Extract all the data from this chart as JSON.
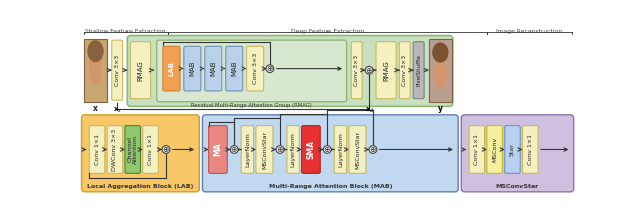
{
  "colors": {
    "conv_box": "#f5f0c0",
    "conv_border": "#c8b860",
    "green_outer_bg": "#c8dfc0",
    "green_outer_border": "#90b878",
    "green_inner_bg": "#d8e8d0",
    "green_inner_border": "#90b878",
    "orange_box": "#f0a050",
    "orange_border": "#d08030",
    "blue_box": "#b8d0e8",
    "blue_border": "#7090b8",
    "orange_section_bg": "#f8c868",
    "orange_section_border": "#c8a030",
    "blue_section_bg": "#c0d8f0",
    "blue_section_border": "#7090c0",
    "purple_section_bg": "#d0c0e0",
    "purple_section_border": "#9070b0",
    "yellow_box": "#f5f0a0",
    "yellow_border": "#c8b820",
    "blue_box2": "#b8d0f0",
    "blue_border2": "#7090d0",
    "gray_box": "#b8b8b8",
    "gray_border": "#808080",
    "ma_box": "#e88880",
    "ma_border": "#c05050",
    "sma_box": "#e83030",
    "sma_border": "#b02020",
    "green_attn_box": "#90c870",
    "green_attn_border": "#508040",
    "add_fill": "#ffffff",
    "add_border": "#404040",
    "line_color": "#404040",
    "text_dark": "#222222",
    "section_text": "#444444"
  },
  "section_labels": {
    "shallow": "Shallow Feature Extraction",
    "deep": "Deep Feature Extraction",
    "recon": "Image Reconstruction"
  }
}
